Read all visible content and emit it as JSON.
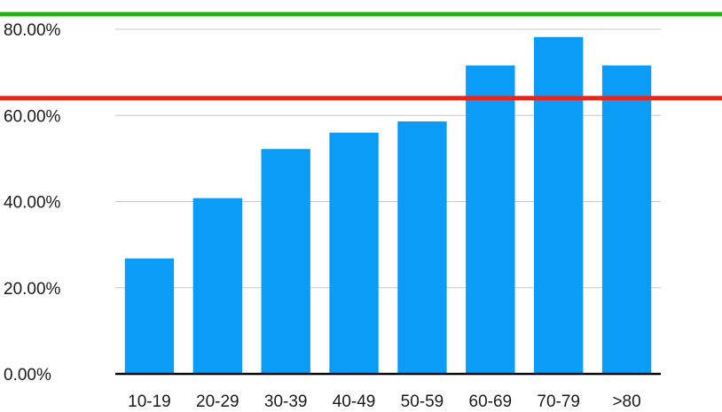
{
  "chart_data": {
    "type": "bar",
    "categories": [
      "10-19",
      "20-29",
      "30-39",
      "40-49",
      "50-59",
      "60-69",
      "70-79",
      ">80"
    ],
    "values": [
      26.8,
      40.8,
      52.2,
      56.0,
      58.6,
      71.6,
      78.2,
      71.6
    ],
    "ylim": [
      0,
      80
    ],
    "yticks": [
      "0.00%",
      "20.00%",
      "40.00%",
      "60.00%",
      "80.00%"
    ],
    "grid": true,
    "bar_color": "#0a9cf7",
    "reference_lines": [
      {
        "value": 83.5,
        "color": "#21b414"
      },
      {
        "value": 64.0,
        "color": "#e5281b"
      }
    ]
  }
}
